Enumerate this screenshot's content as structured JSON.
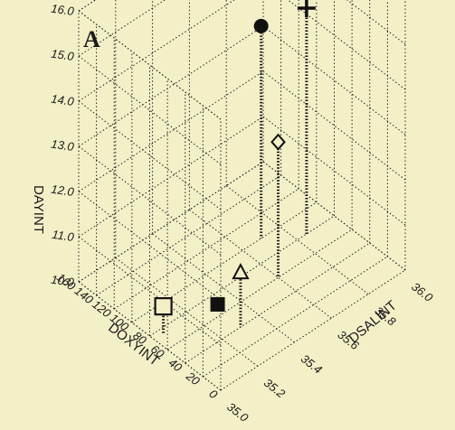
{
  "chart_data": {
    "type": "scatter",
    "panel_label": "A",
    "x_axis": {
      "label": "DSALINT",
      "range": [
        35.0,
        36.0
      ],
      "ticks": [
        "35.0",
        "35.2",
        "35.4",
        "35.6",
        "35.8",
        "36.0"
      ]
    },
    "y_axis": {
      "label": "DOXYINT",
      "range": [
        0,
        160
      ],
      "ticks": [
        "0",
        "20",
        "40",
        "60",
        "80",
        "100",
        "120",
        "140",
        "160"
      ]
    },
    "z_axis": {
      "label": "DAYINT",
      "range": [
        10.0,
        16.0
      ],
      "ticks": [
        "10.0",
        "11.0",
        "12.0",
        "13.0",
        "14.0",
        "15.0",
        "16.0"
      ]
    },
    "grid": true,
    "points": [
      {
        "marker": "open-square",
        "x": 35.05,
        "y": 75,
        "z": 10.6
      },
      {
        "marker": "open-triangle",
        "x": 35.3,
        "y": 40,
        "z": 11.2
      },
      {
        "marker": "filled-square",
        "x": 35.32,
        "y": 70,
        "z": 10.0
      },
      {
        "marker": "open-diamond",
        "x": 35.6,
        "y": 60,
        "z": 13.0
      },
      {
        "marker": "filled-circle",
        "x": 35.7,
        "y": 100,
        "z": 14.7
      },
      {
        "marker": "plus",
        "x": 35.85,
        "y": 80,
        "z": 15.0
      }
    ]
  }
}
